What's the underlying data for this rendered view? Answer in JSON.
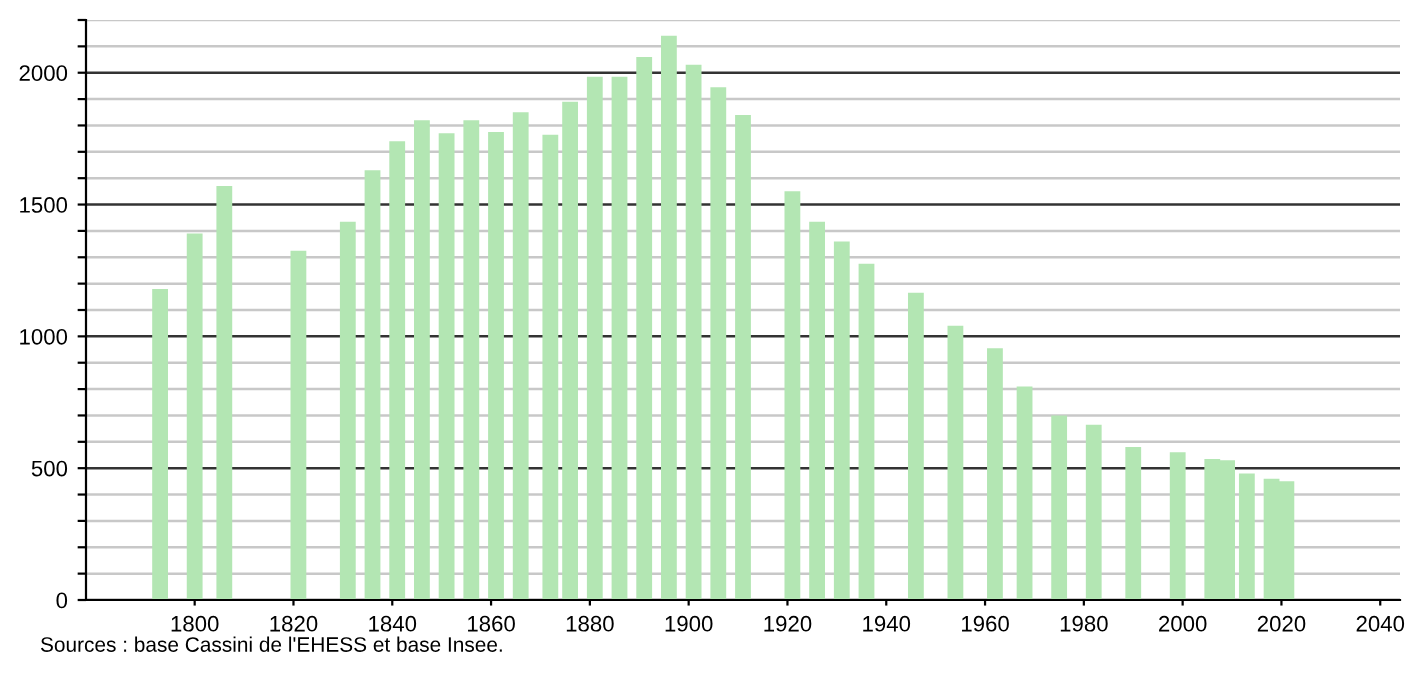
{
  "chart_data": {
    "type": "bar",
    "x": [
      1793,
      1800,
      1806,
      1821,
      1831,
      1836,
      1841,
      1846,
      1851,
      1856,
      1861,
      1866,
      1872,
      1876,
      1881,
      1886,
      1891,
      1896,
      1901,
      1906,
      1911,
      1921,
      1926,
      1931,
      1936,
      1946,
      1954,
      1962,
      1968,
      1975,
      1982,
      1990,
      1999,
      2006,
      2009,
      2013,
      2018,
      2021
    ],
    "series": [
      {
        "color": "#b3e6b3",
        "values": [
          1180,
          1390,
          1570,
          1325,
          1435,
          1630,
          1740,
          1820,
          1770,
          1820,
          1775,
          1850,
          1765,
          1890,
          1985,
          1985,
          2060,
          2140,
          2030,
          1945,
          1840,
          1550,
          1435,
          1360,
          1275,
          1165,
          1040,
          955,
          810,
          700,
          665,
          580,
          560,
          535,
          530,
          480,
          460,
          450
        ]
      }
    ],
    "xlim": [
      1778,
      2044
    ],
    "xticks": [
      1800,
      1820,
      1840,
      1860,
      1880,
      1900,
      1920,
      1940,
      1960,
      1980,
      2000,
      2020,
      2040
    ],
    "ylim": [
      0,
      2200
    ],
    "yticks": [
      0,
      {
        "value": 100,
        "label": null
      },
      {
        "value": 200,
        "label": null
      },
      {
        "value": 300,
        "label": null
      },
      {
        "value": 400,
        "label": null
      },
      500,
      {
        "value": 600,
        "label": null
      },
      {
        "value": 700,
        "label": null
      },
      {
        "value": 800,
        "label": null
      },
      {
        "value": 900,
        "label": null
      },
      1000,
      {
        "value": 1100,
        "label": null
      },
      {
        "value": 1200,
        "label": null
      },
      {
        "value": 1300,
        "label": null
      },
      {
        "value": 1400,
        "label": null
      },
      1500,
      {
        "value": 1600,
        "label": null
      },
      {
        "value": 1700,
        "label": null
      },
      {
        "value": 1800,
        "label": null
      },
      {
        "value": 1900,
        "label": null
      },
      2000,
      {
        "value": 2100,
        "label": null
      },
      {
        "value": 2200,
        "label": null
      }
    ],
    "grid": "y",
    "annotations": [
      "Sources : base Cassini de l'EHESS et base Insee."
    ]
  }
}
